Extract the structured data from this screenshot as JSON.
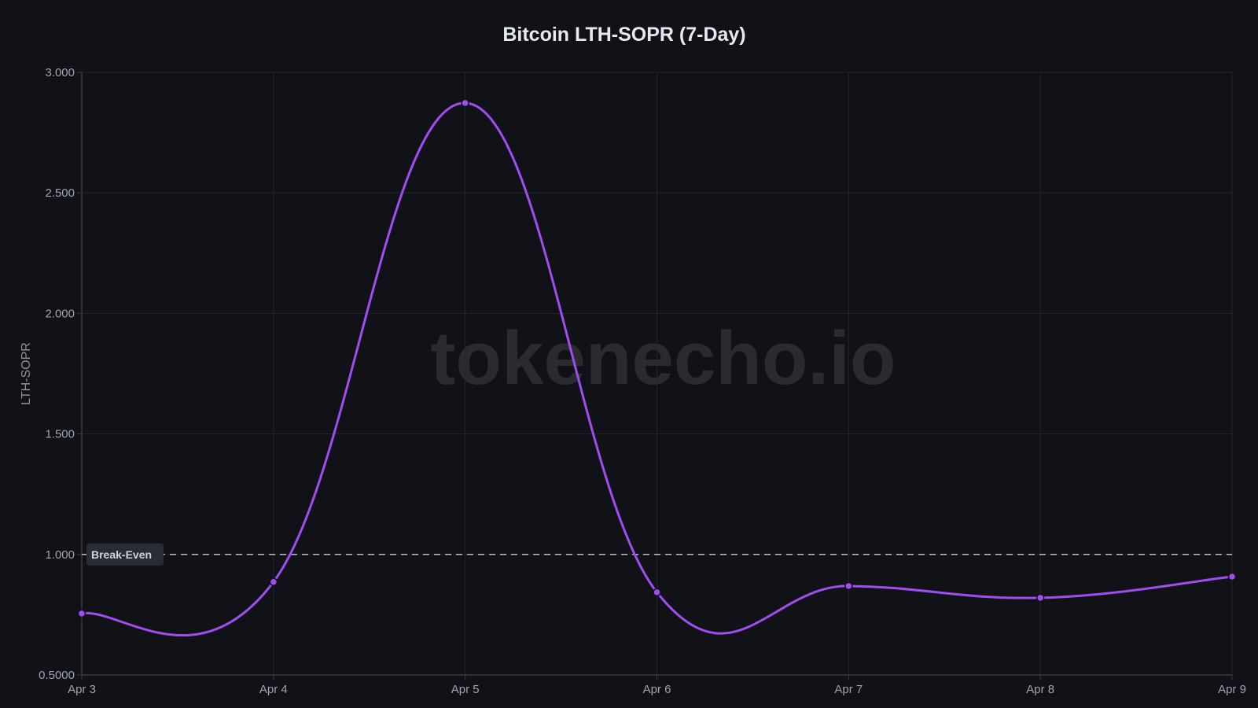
{
  "title": "Bitcoin LTH-SOPR (7-Day)",
  "watermark": "tokenecho.io",
  "colors": {
    "background": "#111218",
    "line": "#a04df0",
    "grid": "#23252c",
    "reference_line": "#b9bcc3"
  },
  "chart_data": {
    "type": "line",
    "title": "Bitcoin LTH-SOPR (7-Day)",
    "xlabel": "",
    "ylabel": "LTH-SOPR",
    "categories": [
      "Apr 3",
      "Apr 4",
      "Apr 5",
      "Apr 6",
      "Apr 7",
      "Apr 8",
      "Apr 9"
    ],
    "series": [
      {
        "name": "LTH-SOPR",
        "values": [
          0.755,
          0.886,
          2.873,
          0.843,
          0.869,
          0.82,
          0.908
        ]
      }
    ],
    "ylim": [
      0.5,
      3.0
    ],
    "yticks": [
      "0.5000",
      "1.000",
      "1.500",
      "2.000",
      "2.500",
      "3.000"
    ],
    "ytick_values": [
      0.5,
      1.0,
      1.5,
      2.0,
      2.5,
      3.0
    ],
    "grid": true,
    "legend": null,
    "annotations": [
      {
        "type": "hline",
        "y": 1.0,
        "label": "Break-Even",
        "style": "dashed"
      }
    ]
  }
}
